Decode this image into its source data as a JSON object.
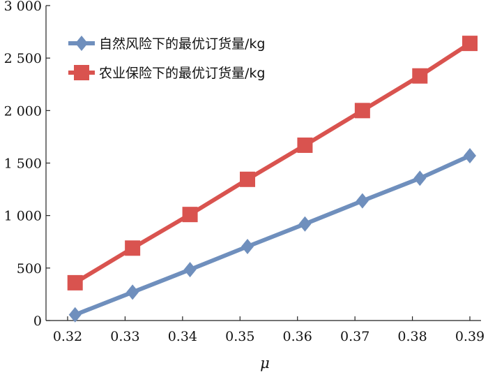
{
  "chart_data": {
    "type": "line",
    "xlabel": "μ",
    "ylabel": "",
    "xlim": [
      0.32,
      0.39
    ],
    "ylim": [
      0,
      3000
    ],
    "xticks": [
      "0.32",
      "0.33",
      "0.34",
      "0.35",
      "0.36",
      "0.37",
      "0.38",
      "0.39"
    ],
    "yticks": [
      "0",
      "500",
      "1 000",
      "1 500",
      "2 000",
      "2 500",
      "3 000"
    ],
    "grid": false,
    "legend_position": "top-left",
    "x": [
      0.3213,
      0.3313,
      0.3413,
      0.3513,
      0.3613,
      0.3713,
      0.3813,
      0.39
    ],
    "series": [
      {
        "name": "自然风险下的最优订货量/kg",
        "color": "#6f8fbd",
        "marker": "diamond",
        "values": [
          55,
          270,
          485,
          705,
          920,
          1140,
          1355,
          1570
        ]
      },
      {
        "name": "农业保险下的最优订货量/kg",
        "color": "#d9534f",
        "marker": "square",
        "values": [
          360,
          690,
          1010,
          1345,
          1670,
          2000,
          2330,
          2640
        ]
      }
    ]
  }
}
